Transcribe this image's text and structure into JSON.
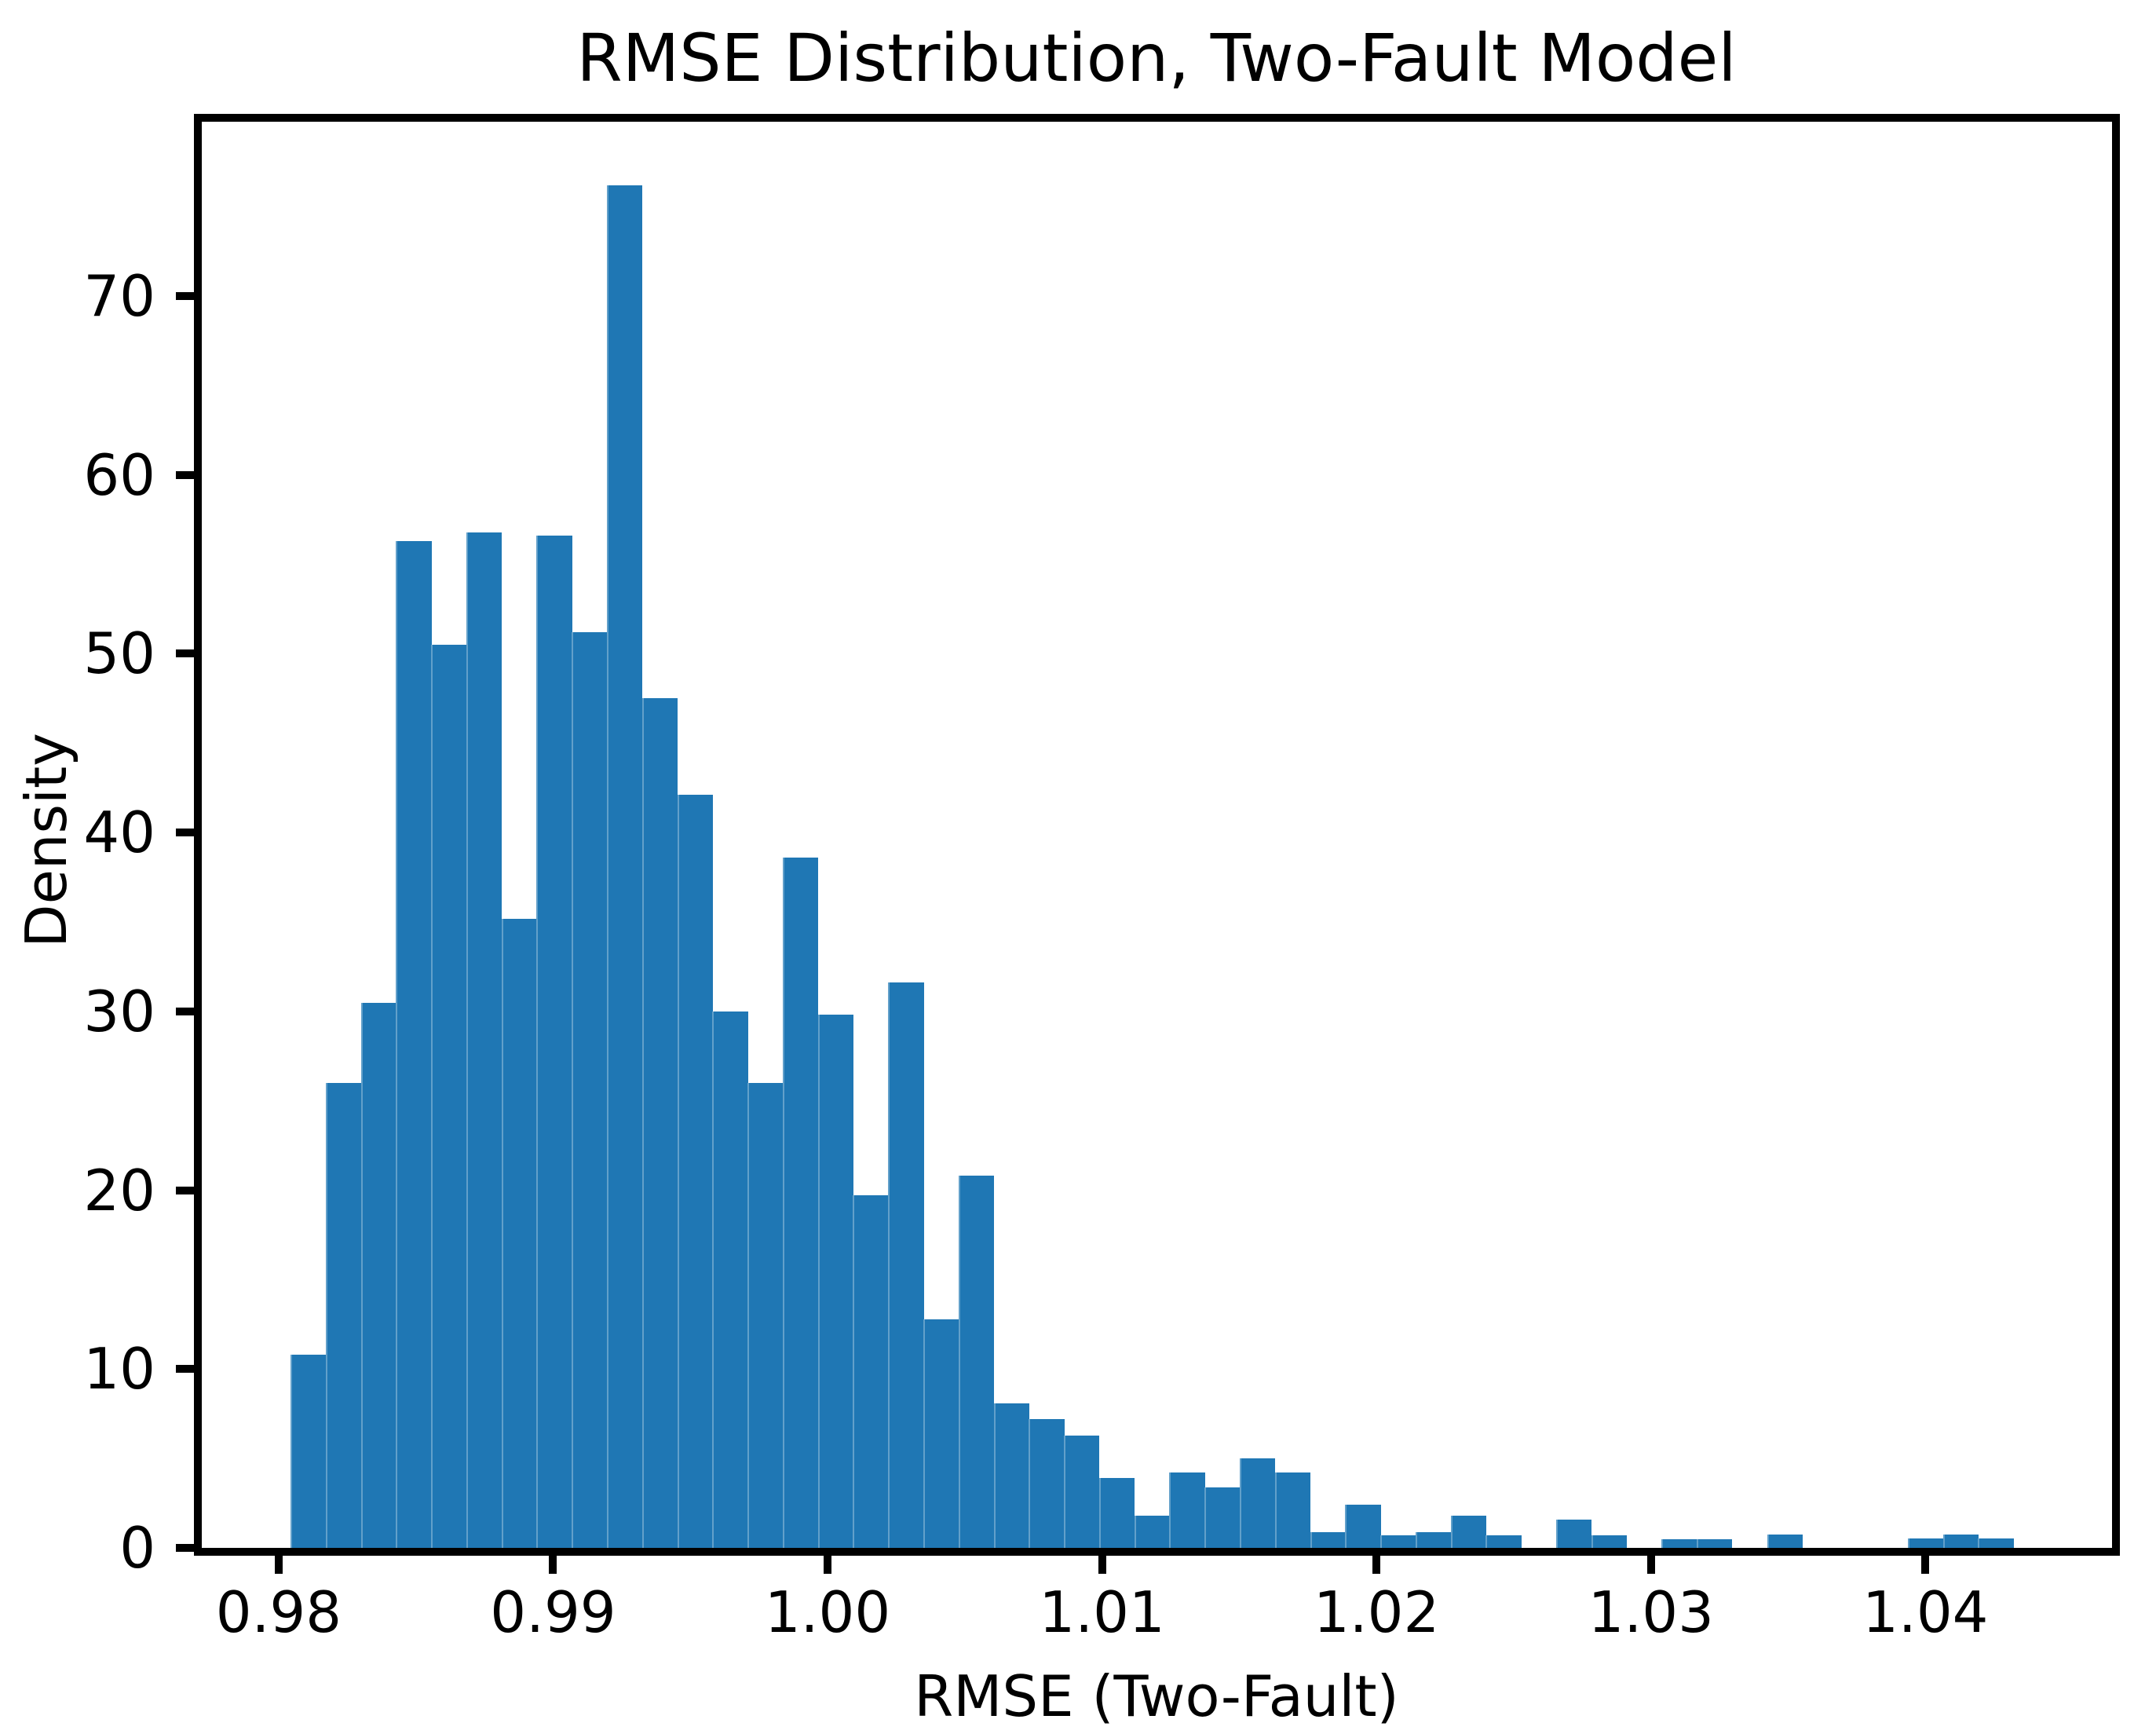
{
  "chart_data": {
    "type": "bar",
    "subtype": "histogram",
    "title": "RMSE Distribution, Two-Fault Model",
    "xlabel": "RMSE (Two-Fault)",
    "ylabel": "Density",
    "bar_color": "#1f77b4",
    "spine_color": "#000000",
    "background_color": "#ffffff",
    "grid": false,
    "legend_position": "none",
    "bin_start": 0.98043,
    "bin_width": 0.001281,
    "densities": [
      10.8,
      26.0,
      30.5,
      56.3,
      50.5,
      56.8,
      35.2,
      56.6,
      51.2,
      76.2,
      47.5,
      42.1,
      30.0,
      26.0,
      38.6,
      29.8,
      19.7,
      31.6,
      12.8,
      20.8,
      8.1,
      7.2,
      6.3,
      3.9,
      1.8,
      4.2,
      3.4,
      5.0,
      4.2,
      0.9,
      2.4,
      0.7,
      0.9,
      1.8,
      0.7,
      0.0,
      1.6,
      0.7,
      0.0,
      0.5,
      0.5,
      0.0,
      0.75,
      0.0,
      0.0,
      0.0,
      0.53,
      0.75,
      0.53,
      0.0
    ],
    "xlim": [
      0.9772,
      1.0468
    ],
    "ylim": [
      0,
      79.75
    ],
    "xticks": [
      0.98,
      0.99,
      1.0,
      1.01,
      1.02,
      1.03,
      1.04
    ],
    "xtick_labels": [
      "0.98",
      "0.99",
      "1.00",
      "1.01",
      "1.02",
      "1.03",
      "1.04"
    ],
    "yticks": [
      0,
      10,
      20,
      30,
      40,
      50,
      60,
      70
    ],
    "ytick_labels": [
      "0",
      "10",
      "20",
      "30",
      "40",
      "50",
      "60",
      "70"
    ]
  }
}
